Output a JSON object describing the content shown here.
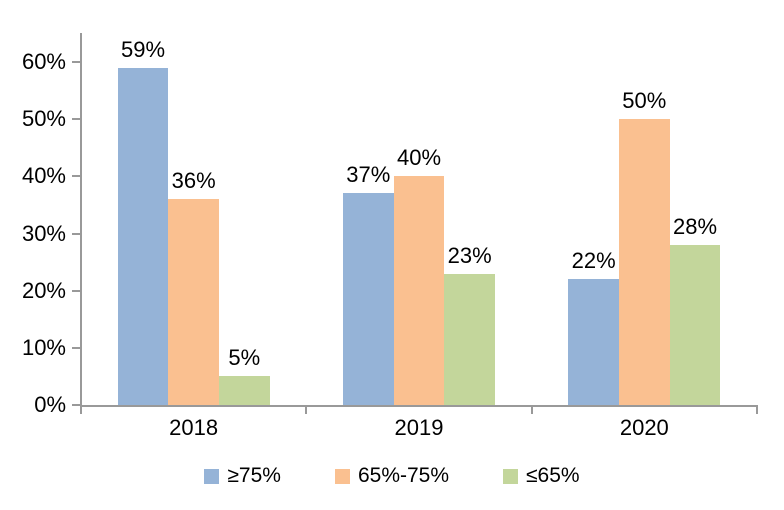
{
  "chart_data": {
    "type": "bar",
    "categories": [
      "2018",
      "2019",
      "2020"
    ],
    "series": [
      {
        "name": "≥75%",
        "color": "#95B3D7",
        "values": [
          59,
          37,
          22
        ],
        "labels": [
          "59%",
          "37%",
          "22%"
        ]
      },
      {
        "name": "65%-75%",
        "color": "#FAC090",
        "values": [
          36,
          40,
          50
        ],
        "labels": [
          "36%",
          "40%",
          "50%"
        ]
      },
      {
        "name": "≤65%",
        "color": "#C3D69B",
        "values": [
          5,
          23,
          28
        ],
        "labels": [
          "5%",
          "23%",
          "28%"
        ]
      }
    ],
    "y_axis": {
      "range": [
        0,
        60
      ],
      "ticks": [
        0,
        10,
        20,
        30,
        40,
        50,
        60
      ],
      "tick_labels": [
        "0%",
        "10%",
        "20%",
        "30%",
        "40%",
        "50%",
        "60%"
      ]
    },
    "grid": false,
    "legend_position": "bottom",
    "colors": {
      "axis": "#999999",
      "text": "#000000",
      "background": "#FFFFFF"
    }
  }
}
